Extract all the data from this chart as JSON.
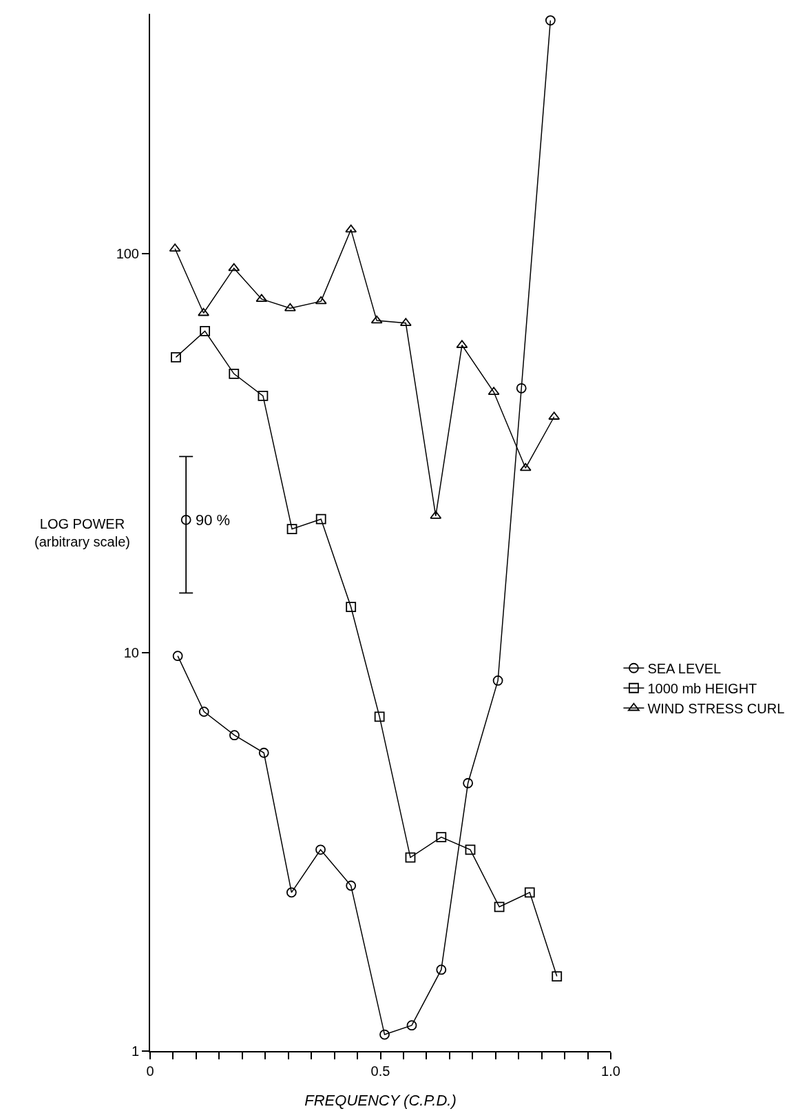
{
  "chart_data": {
    "type": "line",
    "xlabel": "FREQUENCY (C.P.D.)",
    "ylabel": "LOG POWER\n(arbitrary scale)",
    "log": "y",
    "xlim": [
      0,
      1.0
    ],
    "ylim": [
      1,
      400
    ],
    "xticks": [
      0,
      {
        "value": 0.05,
        "label": null
      },
      {
        "value": 0.1,
        "label": null
      },
      {
        "value": 0.15,
        "label": null
      },
      {
        "value": 0.2,
        "label": null
      },
      {
        "value": 0.25,
        "label": null
      },
      {
        "value": 0.3,
        "label": null
      },
      {
        "value": 0.35,
        "label": null
      },
      {
        "value": 0.4,
        "label": null
      },
      {
        "value": 0.45,
        "label": null
      },
      0.5,
      {
        "value": 0.55,
        "label": null
      },
      {
        "value": 0.6,
        "label": null
      },
      {
        "value": 0.65,
        "label": null
      },
      {
        "value": 0.7,
        "label": null
      },
      {
        "value": 0.75,
        "label": null
      },
      {
        "value": 0.8,
        "label": null
      },
      {
        "value": 0.85,
        "label": null
      },
      {
        "value": 0.9,
        "label": null
      },
      {
        "value": 0.95,
        "label": null
      },
      {
        "value": 1.0,
        "label": "1.0"
      }
    ],
    "yticks": [
      1,
      10,
      100
    ],
    "legend": "right",
    "series": [
      {
        "name": "SEA LEVEL",
        "color": "#000000",
        "marker": "circle",
        "x": [
          0.06,
          0.117,
          0.183,
          0.247,
          0.307,
          0.37,
          0.436,
          0.509,
          0.568,
          0.632,
          0.69,
          0.755,
          0.806,
          0.869
        ],
        "values": [
          9.8,
          7.1,
          6.2,
          5.6,
          2.5,
          3.2,
          2.6,
          1.1,
          1.16,
          1.6,
          4.7,
          8.5,
          46,
          385
        ]
      },
      {
        "name": "1000 mb HEIGHT",
        "color": "#000000",
        "marker": "square",
        "x": [
          0.056,
          0.119,
          0.182,
          0.245,
          0.308,
          0.371,
          0.436,
          0.498,
          0.565,
          0.632,
          0.695,
          0.758,
          0.824,
          0.883
        ],
        "values": [
          55,
          64,
          50,
          44,
          20.4,
          21.6,
          13,
          6.9,
          3.06,
          3.44,
          3.2,
          2.3,
          2.5,
          1.54
        ]
      },
      {
        "name": "WIND STRESS CURL",
        "color": "#000000",
        "marker": "triangle",
        "x": [
          0.054,
          0.116,
          0.182,
          0.242,
          0.304,
          0.371,
          0.436,
          0.492,
          0.555,
          0.62,
          0.677,
          0.746,
          0.815,
          0.877
        ],
        "values": [
          103,
          71,
          92,
          77,
          73,
          76,
          115,
          68,
          67,
          22,
          59,
          45,
          29,
          39
        ]
      },
      {
        "type": "scatter",
        "color": "#000000",
        "marker": "circle",
        "x": [
          0.078
        ],
        "values": [
          21.5
        ],
        "errors": [
          [
            14.1,
            31
          ]
        ]
      }
    ],
    "annotations": [
      {
        "text": "90 %",
        "x": 0.078,
        "y": 21.5
      }
    ]
  }
}
